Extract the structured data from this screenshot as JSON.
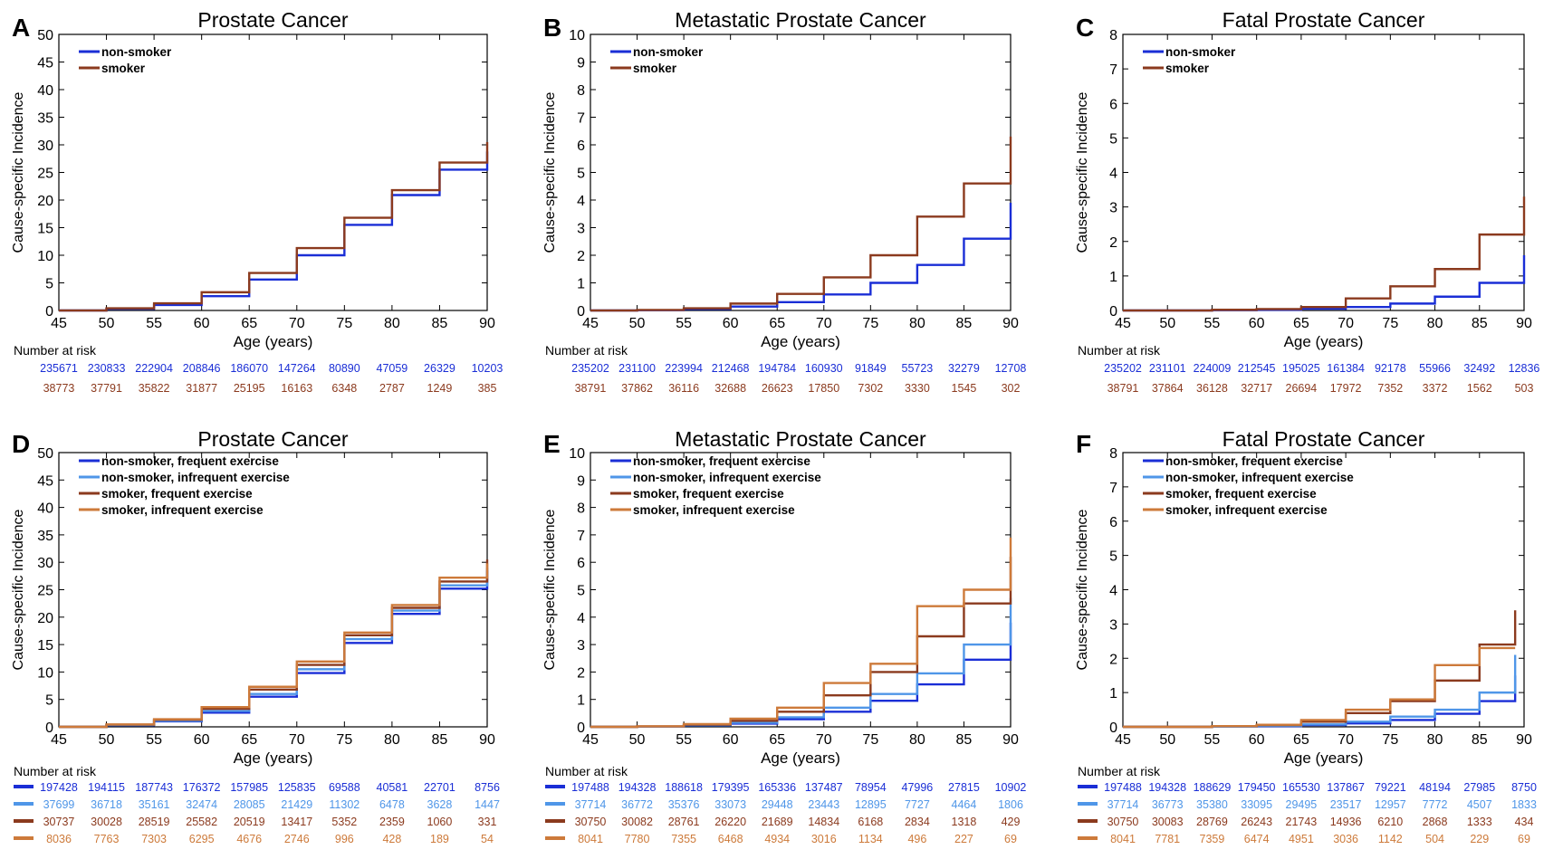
{
  "common": {
    "xlabel": "Age (years)",
    "ylabel": "Cause-specific Incidence",
    "risk_label": "Number at risk",
    "x_ticks": [
      45,
      50,
      55,
      60,
      65,
      70,
      75,
      80,
      85,
      90
    ],
    "xlim": [
      45,
      90
    ]
  },
  "colors": {
    "non_smoker": "#1a2ed6",
    "smoker": "#8b3a1e",
    "non_smoker_frequent": "#1a2ed6",
    "non_smoker_infrequent": "#4f96e8",
    "smoker_frequent": "#8b3a1e",
    "smoker_infrequent": "#cd7a3a",
    "axis": "#000000"
  },
  "chart_data": [
    {
      "letter": "A",
      "type": "line",
      "step": true,
      "title": "Prostate Cancer",
      "ylim": [
        0,
        50
      ],
      "y_ticks": [
        0,
        5,
        10,
        15,
        20,
        25,
        30,
        35,
        40,
        45,
        50
      ],
      "legend_position": "top-left",
      "series": [
        {
          "name": "non-smoker",
          "color_key": "non_smoker",
          "x": [
            45,
            50,
            55,
            60,
            65,
            70,
            75,
            80,
            85,
            90
          ],
          "y": [
            0,
            0.3,
            1.0,
            2.6,
            5.6,
            10.0,
            15.5,
            20.9,
            25.5,
            28.8
          ]
        },
        {
          "name": "smoker",
          "color_key": "smoker",
          "x": [
            45,
            50,
            55,
            60,
            65,
            70,
            75,
            80,
            85,
            90
          ],
          "y": [
            0,
            0.4,
            1.3,
            3.3,
            6.8,
            11.3,
            16.8,
            21.8,
            26.8,
            30.5
          ]
        }
      ],
      "risk_rows": [
        {
          "color_key": "non_smoker",
          "values": [
            "235671",
            "230833",
            "222904",
            "208846",
            "186070",
            "147264",
            "80890",
            "47059",
            "26329",
            "10203"
          ]
        },
        {
          "color_key": "smoker",
          "values": [
            "38773",
            "37791",
            "35822",
            "31877",
            "25195",
            "16163",
            "6348",
            "2787",
            "1249",
            "385"
          ]
        }
      ]
    },
    {
      "letter": "B",
      "type": "line",
      "step": true,
      "title": "Metastatic Prostate Cancer",
      "ylim": [
        0,
        10
      ],
      "y_ticks": [
        0,
        1,
        2,
        3,
        4,
        5,
        6,
        7,
        8,
        9,
        10
      ],
      "legend_position": "top-left",
      "series": [
        {
          "name": "non-smoker",
          "color_key": "non_smoker",
          "x": [
            45,
            50,
            55,
            60,
            65,
            70,
            75,
            80,
            85,
            90
          ],
          "y": [
            0,
            0.01,
            0.05,
            0.14,
            0.3,
            0.58,
            1.0,
            1.65,
            2.6,
            3.9
          ]
        },
        {
          "name": "smoker",
          "color_key": "smoker",
          "x": [
            45,
            50,
            55,
            60,
            65,
            70,
            75,
            80,
            85,
            90
          ],
          "y": [
            0,
            0.02,
            0.08,
            0.25,
            0.6,
            1.2,
            2.0,
            3.4,
            4.6,
            6.3
          ]
        }
      ],
      "risk_rows": [
        {
          "color_key": "non_smoker",
          "values": [
            "235202",
            "231100",
            "223994",
            "212468",
            "194784",
            "160930",
            "91849",
            "55723",
            "32279",
            "12708"
          ]
        },
        {
          "color_key": "smoker",
          "values": [
            "38791",
            "37862",
            "36116",
            "32688",
            "26623",
            "17850",
            "7302",
            "3330",
            "1545",
            "302"
          ]
        }
      ]
    },
    {
      "letter": "C",
      "type": "line",
      "step": true,
      "title": "Fatal Prostate Cancer",
      "ylim": [
        0,
        8
      ],
      "y_ticks": [
        0,
        1,
        2,
        3,
        4,
        5,
        6,
        7,
        8
      ],
      "legend_position": "top-left",
      "series": [
        {
          "name": "non-smoker",
          "color_key": "non_smoker",
          "x": [
            45,
            50,
            55,
            60,
            65,
            70,
            75,
            80,
            85,
            90
          ],
          "y": [
            0,
            0,
            0.01,
            0.02,
            0.05,
            0.1,
            0.2,
            0.4,
            0.8,
            1.6
          ]
        },
        {
          "name": "smoker",
          "color_key": "smoker",
          "x": [
            45,
            50,
            55,
            60,
            65,
            70,
            75,
            80,
            85,
            90
          ],
          "y": [
            0,
            0,
            0.02,
            0.04,
            0.1,
            0.35,
            0.7,
            1.2,
            2.2,
            3.3
          ]
        }
      ],
      "risk_rows": [
        {
          "color_key": "non_smoker",
          "values": [
            "235202",
            "231101",
            "224009",
            "212545",
            "195025",
            "161384",
            "92178",
            "55966",
            "32492",
            "12836"
          ]
        },
        {
          "color_key": "smoker",
          "values": [
            "38791",
            "37864",
            "36128",
            "32717",
            "26694",
            "17972",
            "7352",
            "3372",
            "1562",
            "503"
          ]
        }
      ]
    },
    {
      "letter": "D",
      "type": "line",
      "step": true,
      "title": "Prostate Cancer",
      "ylim": [
        0,
        50
      ],
      "y_ticks": [
        0,
        5,
        10,
        15,
        20,
        25,
        30,
        35,
        40,
        45,
        50
      ],
      "legend_position": "top-left",
      "series": [
        {
          "name": "non-smoker, frequent exercise",
          "color_key": "non_smoker_frequent",
          "x": [
            45,
            50,
            55,
            60,
            65,
            70,
            75,
            80,
            85,
            90
          ],
          "y": [
            0,
            0.3,
            1.0,
            2.6,
            5.5,
            9.8,
            15.3,
            20.6,
            25.2,
            28.5
          ]
        },
        {
          "name": "non-smoker, infrequent exercise",
          "color_key": "non_smoker_infrequent",
          "x": [
            45,
            50,
            55,
            60,
            65,
            70,
            75,
            80,
            85,
            90
          ],
          "y": [
            0,
            0.35,
            1.1,
            2.9,
            6.0,
            10.5,
            16.0,
            21.2,
            25.8,
            29.0
          ]
        },
        {
          "name": "smoker, frequent exercise",
          "color_key": "smoker_frequent",
          "x": [
            45,
            50,
            55,
            60,
            65,
            70,
            75,
            80,
            85,
            90
          ],
          "y": [
            0,
            0.4,
            1.3,
            3.3,
            6.8,
            11.3,
            16.7,
            21.7,
            26.5,
            30.5
          ]
        },
        {
          "name": "smoker, infrequent exercise",
          "color_key": "smoker_infrequent",
          "x": [
            45,
            50,
            55,
            60,
            65,
            70,
            75,
            80,
            85,
            90
          ],
          "y": [
            0,
            0.45,
            1.4,
            3.6,
            7.3,
            11.9,
            17.2,
            22.2,
            27.2,
            29.8
          ]
        }
      ],
      "risk_rows": [
        {
          "color_key": "non_smoker_frequent",
          "values": [
            "197428",
            "194115",
            "187743",
            "176372",
            "157985",
            "125835",
            "69588",
            "40581",
            "22701",
            "8756"
          ]
        },
        {
          "color_key": "non_smoker_infrequent",
          "values": [
            "37699",
            "36718",
            "35161",
            "32474",
            "28085",
            "21429",
            "11302",
            "6478",
            "3628",
            "1447"
          ]
        },
        {
          "color_key": "smoker_frequent",
          "values": [
            "30737",
            "30028",
            "28519",
            "25582",
            "20519",
            "13417",
            "5352",
            "2359",
            "1060",
            "331"
          ]
        },
        {
          "color_key": "smoker_infrequent",
          "values": [
            "8036",
            "7763",
            "7303",
            "6295",
            "4676",
            "2746",
            "996",
            "428",
            "189",
            "54"
          ]
        }
      ]
    },
    {
      "letter": "E",
      "type": "line",
      "step": true,
      "title": "Metastatic Prostate Cancer",
      "ylim": [
        0,
        10
      ],
      "y_ticks": [
        0,
        1,
        2,
        3,
        4,
        5,
        6,
        7,
        8,
        9,
        10
      ],
      "legend_position": "top-left",
      "series": [
        {
          "name": "non-smoker, frequent exercise",
          "color_key": "non_smoker_frequent",
          "x": [
            45,
            50,
            55,
            60,
            65,
            70,
            75,
            80,
            85,
            90
          ],
          "y": [
            0,
            0.01,
            0.05,
            0.12,
            0.28,
            0.55,
            0.95,
            1.55,
            2.45,
            3.8
          ]
        },
        {
          "name": "non-smoker, infrequent exercise",
          "color_key": "non_smoker_infrequent",
          "x": [
            45,
            50,
            55,
            60,
            65,
            70,
            75,
            80,
            85,
            90
          ],
          "y": [
            0,
            0.01,
            0.06,
            0.15,
            0.35,
            0.7,
            1.2,
            1.95,
            3.0,
            4.7
          ]
        },
        {
          "name": "smoker, frequent exercise",
          "color_key": "smoker_frequent",
          "x": [
            45,
            50,
            55,
            60,
            65,
            70,
            75,
            80,
            85,
            90
          ],
          "y": [
            0,
            0.02,
            0.08,
            0.22,
            0.55,
            1.15,
            2.0,
            3.3,
            4.5,
            6.2
          ]
        },
        {
          "name": "smoker, infrequent exercise",
          "color_key": "smoker_infrequent",
          "x": [
            45,
            50,
            55,
            60,
            65,
            70,
            75,
            80,
            85,
            90
          ],
          "y": [
            0,
            0.02,
            0.1,
            0.3,
            0.7,
            1.6,
            2.3,
            4.4,
            5.0,
            6.9
          ]
        }
      ],
      "risk_rows": [
        {
          "color_key": "non_smoker_frequent",
          "values": [
            "197488",
            "194328",
            "188618",
            "179395",
            "165336",
            "137487",
            "78954",
            "47996",
            "27815",
            "10902"
          ]
        },
        {
          "color_key": "non_smoker_infrequent",
          "values": [
            "37714",
            "36772",
            "35376",
            "33073",
            "29448",
            "23443",
            "12895",
            "7727",
            "4464",
            "1806"
          ]
        },
        {
          "color_key": "smoker_frequent",
          "values": [
            "30750",
            "30082",
            "28761",
            "26220",
            "21689",
            "14834",
            "6168",
            "2834",
            "1318",
            "429"
          ]
        },
        {
          "color_key": "smoker_infrequent",
          "values": [
            "8041",
            "7780",
            "7355",
            "6468",
            "4934",
            "3016",
            "1134",
            "496",
            "227",
            "69"
          ]
        }
      ]
    },
    {
      "letter": "F",
      "type": "line",
      "step": true,
      "title": "Fatal Prostate Cancer",
      "ylim": [
        0,
        8
      ],
      "y_ticks": [
        0,
        1,
        2,
        3,
        4,
        5,
        6,
        7,
        8
      ],
      "legend_position": "top-left",
      "series": [
        {
          "name": "non-smoker, frequent exercise",
          "color_key": "non_smoker_frequent",
          "x": [
            45,
            50,
            55,
            60,
            65,
            70,
            75,
            80,
            85,
            89
          ],
          "y": [
            0,
            0,
            0.01,
            0.02,
            0.05,
            0.1,
            0.2,
            0.38,
            0.75,
            1.5
          ]
        },
        {
          "name": "non-smoker, infrequent exercise",
          "color_key": "non_smoker_infrequent",
          "x": [
            45,
            50,
            55,
            60,
            65,
            70,
            75,
            80,
            85,
            89
          ],
          "y": [
            0,
            0,
            0.01,
            0.03,
            0.07,
            0.15,
            0.3,
            0.5,
            1.0,
            2.1
          ]
        },
        {
          "name": "smoker, frequent exercise",
          "color_key": "smoker_frequent",
          "x": [
            45,
            50,
            55,
            60,
            65,
            70,
            75,
            80,
            85,
            89
          ],
          "y": [
            0,
            0,
            0.02,
            0.05,
            0.15,
            0.4,
            0.75,
            1.35,
            2.4,
            3.4
          ]
        },
        {
          "name": "smoker, infrequent exercise",
          "color_key": "smoker_infrequent",
          "x": [
            45,
            50,
            55,
            60,
            65,
            70,
            75,
            80,
            85,
            89
          ],
          "y": [
            0,
            0,
            0.02,
            0.06,
            0.2,
            0.5,
            0.8,
            1.8,
            2.3,
            2.3
          ]
        }
      ],
      "risk_rows": [
        {
          "color_key": "non_smoker_frequent",
          "values": [
            "197488",
            "194328",
            "188629",
            "179450",
            "165530",
            "137867",
            "79221",
            "48194",
            "27985",
            "8750"
          ]
        },
        {
          "color_key": "non_smoker_infrequent",
          "values": [
            "37714",
            "36773",
            "35380",
            "33095",
            "29495",
            "23517",
            "12957",
            "7772",
            "4507",
            "1833"
          ]
        },
        {
          "color_key": "smoker_frequent",
          "values": [
            "30750",
            "30083",
            "28769",
            "26243",
            "21743",
            "14936",
            "6210",
            "2868",
            "1333",
            "434"
          ]
        },
        {
          "color_key": "smoker_infrequent",
          "values": [
            "8041",
            "7781",
            "7359",
            "6474",
            "4951",
            "3036",
            "1142",
            "504",
            "229",
            "69"
          ]
        }
      ]
    }
  ]
}
